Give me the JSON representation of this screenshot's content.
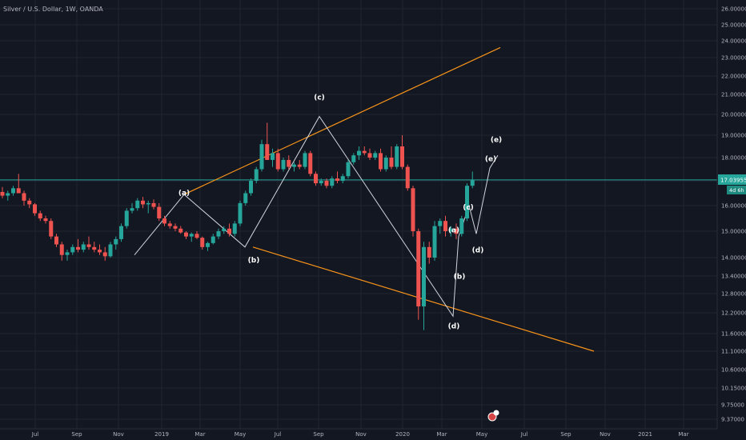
{
  "chart_data": {
    "type": "candlestick",
    "title": "Silver / U.S. Dollar, 1W, OANDA",
    "x_ticks": [
      "Jul",
      "Sep",
      "Nov",
      "2019",
      "Mar",
      "May",
      "Jul",
      "Sep",
      "Nov",
      "2020",
      "Mar",
      "May",
      "Jul",
      "Sep",
      "Nov",
      "2021",
      "Mar"
    ],
    "y_ticks": [
      "26.00000",
      "25.00000",
      "24.00000",
      "23.00000",
      "22.00000",
      "21.00000",
      "20.00000",
      "19.00000",
      "18.00000",
      "17.00000",
      "16.00000",
      "15.00000",
      "14.00000",
      "13.40000",
      "12.80000",
      "12.20000",
      "11.60000",
      "11.10000",
      "10.60000",
      "10.15000",
      "9.75000",
      "9.37000"
    ],
    "ylim": [
      9.37,
      26.0
    ],
    "grid": true,
    "current_price": "17.03955",
    "countdown": "4d 6h",
    "colors": {
      "up": "#26a69a",
      "down": "#ef5350",
      "line": "#26a69a",
      "trendline": "#f7931a",
      "wave": "#d1d4dc"
    },
    "candles": [
      {
        "o": 16.55,
        "h": 16.75,
        "l": 16.3,
        "c": 16.4
      },
      {
        "o": 16.4,
        "h": 16.6,
        "l": 16.2,
        "c": 16.5
      },
      {
        "o": 16.5,
        "h": 16.8,
        "l": 16.4,
        "c": 16.7
      },
      {
        "o": 16.7,
        "h": 17.3,
        "l": 16.6,
        "c": 16.5
      },
      {
        "o": 16.5,
        "h": 16.6,
        "l": 16.0,
        "c": 16.2
      },
      {
        "o": 16.2,
        "h": 16.3,
        "l": 15.9,
        "c": 16.05
      },
      {
        "o": 16.05,
        "h": 16.1,
        "l": 15.6,
        "c": 15.7
      },
      {
        "o": 15.7,
        "h": 15.8,
        "l": 15.4,
        "c": 15.5
      },
      {
        "o": 15.5,
        "h": 15.6,
        "l": 15.3,
        "c": 15.4
      },
      {
        "o": 15.4,
        "h": 15.5,
        "l": 14.7,
        "c": 14.8
      },
      {
        "o": 14.8,
        "h": 14.9,
        "l": 14.4,
        "c": 14.5
      },
      {
        "o": 14.5,
        "h": 14.6,
        "l": 13.9,
        "c": 14.1
      },
      {
        "o": 14.1,
        "h": 14.3,
        "l": 13.9,
        "c": 14.2
      },
      {
        "o": 14.2,
        "h": 14.5,
        "l": 14.1,
        "c": 14.4
      },
      {
        "o": 14.4,
        "h": 14.7,
        "l": 14.2,
        "c": 14.3
      },
      {
        "o": 14.3,
        "h": 14.6,
        "l": 14.2,
        "c": 14.5
      },
      {
        "o": 14.5,
        "h": 14.8,
        "l": 14.3,
        "c": 14.4
      },
      {
        "o": 14.4,
        "h": 14.6,
        "l": 14.2,
        "c": 14.3
      },
      {
        "o": 14.3,
        "h": 14.5,
        "l": 14.1,
        "c": 14.2
      },
      {
        "o": 14.2,
        "h": 14.4,
        "l": 13.9,
        "c": 14.05
      },
      {
        "o": 14.05,
        "h": 14.6,
        "l": 14.0,
        "c": 14.5
      },
      {
        "o": 14.5,
        "h": 14.8,
        "l": 14.3,
        "c": 14.7
      },
      {
        "o": 14.7,
        "h": 15.3,
        "l": 14.6,
        "c": 15.2
      },
      {
        "o": 15.2,
        "h": 15.9,
        "l": 15.1,
        "c": 15.8
      },
      {
        "o": 15.8,
        "h": 16.1,
        "l": 15.7,
        "c": 15.9
      },
      {
        "o": 15.9,
        "h": 16.3,
        "l": 15.8,
        "c": 16.2
      },
      {
        "o": 16.2,
        "h": 16.35,
        "l": 15.9,
        "c": 16.05
      },
      {
        "o": 16.05,
        "h": 16.2,
        "l": 15.7,
        "c": 16.1
      },
      {
        "o": 16.1,
        "h": 16.25,
        "l": 15.85,
        "c": 15.95
      },
      {
        "o": 15.95,
        "h": 16.1,
        "l": 15.4,
        "c": 15.5
      },
      {
        "o": 15.5,
        "h": 15.6,
        "l": 15.2,
        "c": 15.3
      },
      {
        "o": 15.3,
        "h": 15.4,
        "l": 15.1,
        "c": 15.2
      },
      {
        "o": 15.2,
        "h": 15.3,
        "l": 15.0,
        "c": 15.1
      },
      {
        "o": 15.1,
        "h": 15.2,
        "l": 14.9,
        "c": 14.95
      },
      {
        "o": 14.95,
        "h": 15.0,
        "l": 14.7,
        "c": 14.8
      },
      {
        "o": 14.8,
        "h": 14.95,
        "l": 14.6,
        "c": 14.9
      },
      {
        "o": 14.9,
        "h": 15.0,
        "l": 14.7,
        "c": 14.75
      },
      {
        "o": 14.75,
        "h": 14.8,
        "l": 14.3,
        "c": 14.4
      },
      {
        "o": 14.4,
        "h": 14.6,
        "l": 14.25,
        "c": 14.55
      },
      {
        "o": 14.55,
        "h": 14.9,
        "l": 14.5,
        "c": 14.8
      },
      {
        "o": 14.8,
        "h": 15.1,
        "l": 14.7,
        "c": 15.0
      },
      {
        "o": 15.0,
        "h": 15.2,
        "l": 14.9,
        "c": 15.1
      },
      {
        "o": 15.1,
        "h": 15.3,
        "l": 14.8,
        "c": 14.9
      },
      {
        "o": 14.9,
        "h": 15.4,
        "l": 14.8,
        "c": 15.3
      },
      {
        "o": 15.3,
        "h": 16.2,
        "l": 15.2,
        "c": 16.1
      },
      {
        "o": 16.1,
        "h": 16.6,
        "l": 16.0,
        "c": 16.5
      },
      {
        "o": 16.5,
        "h": 17.1,
        "l": 16.4,
        "c": 17.0
      },
      {
        "o": 17.0,
        "h": 17.6,
        "l": 16.9,
        "c": 17.5
      },
      {
        "o": 17.5,
        "h": 18.8,
        "l": 17.4,
        "c": 18.6
      },
      {
        "o": 18.6,
        "h": 19.6,
        "l": 17.9,
        "c": 17.9
      },
      {
        "o": 17.9,
        "h": 18.4,
        "l": 17.6,
        "c": 18.2
      },
      {
        "o": 18.2,
        "h": 18.4,
        "l": 17.4,
        "c": 17.5
      },
      {
        "o": 17.5,
        "h": 18.0,
        "l": 17.4,
        "c": 17.9
      },
      {
        "o": 17.9,
        "h": 18.1,
        "l": 17.5,
        "c": 17.6
      },
      {
        "o": 17.6,
        "h": 17.8,
        "l": 17.4,
        "c": 17.7
      },
      {
        "o": 17.7,
        "h": 17.9,
        "l": 17.5,
        "c": 17.6
      },
      {
        "o": 17.6,
        "h": 18.3,
        "l": 17.5,
        "c": 18.2
      },
      {
        "o": 18.2,
        "h": 18.3,
        "l": 17.2,
        "c": 17.3
      },
      {
        "o": 17.3,
        "h": 17.4,
        "l": 16.8,
        "c": 16.9
      },
      {
        "o": 16.9,
        "h": 17.1,
        "l": 16.8,
        "c": 17.0
      },
      {
        "o": 17.0,
        "h": 17.1,
        "l": 16.7,
        "c": 16.8
      },
      {
        "o": 16.8,
        "h": 17.2,
        "l": 16.7,
        "c": 17.1
      },
      {
        "o": 17.1,
        "h": 17.4,
        "l": 16.9,
        "c": 17.0
      },
      {
        "o": 17.0,
        "h": 17.3,
        "l": 16.9,
        "c": 17.2
      },
      {
        "o": 17.2,
        "h": 17.9,
        "l": 17.1,
        "c": 17.8
      },
      {
        "o": 17.8,
        "h": 18.2,
        "l": 17.7,
        "c": 18.1
      },
      {
        "o": 18.1,
        "h": 18.5,
        "l": 17.9,
        "c": 18.3
      },
      {
        "o": 18.3,
        "h": 18.5,
        "l": 18.1,
        "c": 18.2
      },
      {
        "o": 18.2,
        "h": 18.4,
        "l": 17.9,
        "c": 18.0
      },
      {
        "o": 18.0,
        "h": 18.3,
        "l": 17.9,
        "c": 18.2
      },
      {
        "o": 18.2,
        "h": 18.4,
        "l": 17.4,
        "c": 17.5
      },
      {
        "o": 17.5,
        "h": 18.1,
        "l": 17.4,
        "c": 18.0
      },
      {
        "o": 18.0,
        "h": 18.5,
        "l": 17.5,
        "c": 17.6
      },
      {
        "o": 17.6,
        "h": 18.6,
        "l": 17.5,
        "c": 18.5
      },
      {
        "o": 18.5,
        "h": 19.0,
        "l": 17.5,
        "c": 17.6
      },
      {
        "o": 17.6,
        "h": 17.7,
        "l": 16.6,
        "c": 16.7
      },
      {
        "o": 16.7,
        "h": 16.8,
        "l": 14.8,
        "c": 15.0
      },
      {
        "o": 15.0,
        "h": 15.1,
        "l": 12.0,
        "c": 12.4
      },
      {
        "o": 12.4,
        "h": 14.6,
        "l": 11.7,
        "c": 14.4
      },
      {
        "o": 14.4,
        "h": 14.6,
        "l": 13.8,
        "c": 14.0
      },
      {
        "o": 14.0,
        "h": 15.4,
        "l": 13.9,
        "c": 15.2
      },
      {
        "o": 15.2,
        "h": 15.5,
        "l": 14.9,
        "c": 15.4
      },
      {
        "o": 15.4,
        "h": 15.6,
        "l": 14.8,
        "c": 15.0
      },
      {
        "o": 15.0,
        "h": 15.2,
        "l": 14.8,
        "c": 15.1
      },
      {
        "o": 15.1,
        "h": 15.3,
        "l": 14.7,
        "c": 14.9
      },
      {
        "o": 14.9,
        "h": 15.6,
        "l": 14.8,
        "c": 15.5
      },
      {
        "o": 15.5,
        "h": 16.9,
        "l": 15.4,
        "c": 16.8
      },
      {
        "o": 16.8,
        "h": 17.4,
        "l": 16.7,
        "c": 17.04
      }
    ],
    "annotations": [
      {
        "label": "(a)",
        "value": 16.42
      },
      {
        "label": "(b)",
        "value": 13.85
      },
      {
        "label": "(c)",
        "value": 20.75
      },
      {
        "label": "(a)",
        "value": 14.95
      },
      {
        "label": "(b)",
        "value": 13.3
      },
      {
        "label": "(c)",
        "value": 15.85
      },
      {
        "label": "(d)",
        "value": 14.2
      },
      {
        "label": "(e)",
        "value": 17.85
      },
      {
        "label": "(e)",
        "value": 18.7
      },
      {
        "label": "(d)",
        "value": 11.75
      }
    ],
    "trendlines": [
      {
        "start": 16.45,
        "end": 23.6
      },
      {
        "start": 14.4,
        "end": 11.1
      }
    ],
    "wave_path_values": [
      14.1,
      16.45,
      14.4,
      19.9,
      17.0,
      12.1,
      14.8,
      16.0,
      14.9,
      17.55,
      18.1
    ]
  }
}
